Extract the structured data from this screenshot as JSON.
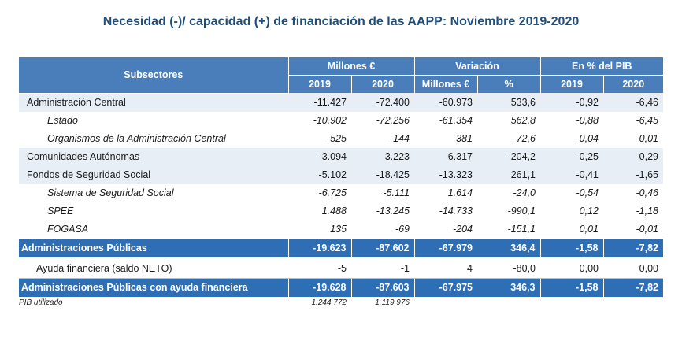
{
  "title": "Necesidad (-)/ capacidad (+) de financiación de las AAPP:  Noviembre 2019-2020",
  "header": {
    "subsectores": "Subsectores",
    "millones": "Millones €",
    "variacion": "Variación",
    "pib": "En % del PIB",
    "y2019": "2019",
    "y2020": "2020",
    "var_millones": "Millones €",
    "var_pct": "%",
    "pib2019": "2019",
    "pib2020": "2020"
  },
  "rows": [
    {
      "label": "Administración Central",
      "m2019": "-11.427",
      "m2020": "-72.400",
      "vm": "-60.973",
      "vp": "533,6",
      "p2019": "-0,92",
      "p2020": "-6,46"
    },
    {
      "label": "Estado",
      "m2019": "-10.902",
      "m2020": "-72.256",
      "vm": "-61.354",
      "vp": "562,8",
      "p2019": "-0,88",
      "p2020": "-6,45"
    },
    {
      "label": "Organismos de la Administración Central",
      "m2019": "-525",
      "m2020": "-144",
      "vm": "381",
      "vp": "-72,6",
      "p2019": "-0,04",
      "p2020": "-0,01"
    },
    {
      "label": "Comunidades Autónomas",
      "m2019": "-3.094",
      "m2020": "3.223",
      "vm": "6.317",
      "vp": "-204,2",
      "p2019": "-0,25",
      "p2020": "0,29"
    },
    {
      "label": "Fondos de Seguridad Social",
      "m2019": "-5.102",
      "m2020": "-18.425",
      "vm": "-13.323",
      "vp": "261,1",
      "p2019": "-0,41",
      "p2020": "-1,65"
    },
    {
      "label": "Sistema de Seguridad Social",
      "m2019": "-6.725",
      "m2020": "-5.111",
      "vm": "1.614",
      "vp": "-24,0",
      "p2019": "-0,54",
      "p2020": "-0,46"
    },
    {
      "label": "SPEE",
      "m2019": "1.488",
      "m2020": "-13.245",
      "vm": "-14.733",
      "vp": "-990,1",
      "p2019": "0,12",
      "p2020": "-1,18"
    },
    {
      "label": "FOGASA",
      "m2019": "135",
      "m2020": "-69",
      "vm": "-204",
      "vp": "-151,1",
      "p2019": "0,01",
      "p2020": "-0,01"
    },
    {
      "label": "Administraciones Públicas",
      "m2019": "-19.623",
      "m2020": "-87.602",
      "vm": "-67.979",
      "vp": "346,4",
      "p2019": "-1,58",
      "p2020": "-7,82"
    },
    {
      "label": "Ayuda financiera (saldo NETO)",
      "m2019": "-5",
      "m2020": "-1",
      "vm": "4",
      "vp": "-80,0",
      "p2019": "0,00",
      "p2020": "0,00"
    },
    {
      "label": "Administraciones Públicas con ayuda financiera",
      "m2019": "-19.628",
      "m2020": "-87.603",
      "vm": "-67.975",
      "vp": "346,3",
      "p2019": "-1,58",
      "p2020": "-7,82"
    }
  ],
  "footer": {
    "label": "PIB utilizado",
    "pib2019": "1.244.772",
    "pib2020": "1.119.976"
  },
  "colors": {
    "header_bg": "#4a7ebb",
    "total_bg": "#2e6eb5",
    "main_row_bg": "#e8eef6",
    "title": "#1f4e79"
  }
}
